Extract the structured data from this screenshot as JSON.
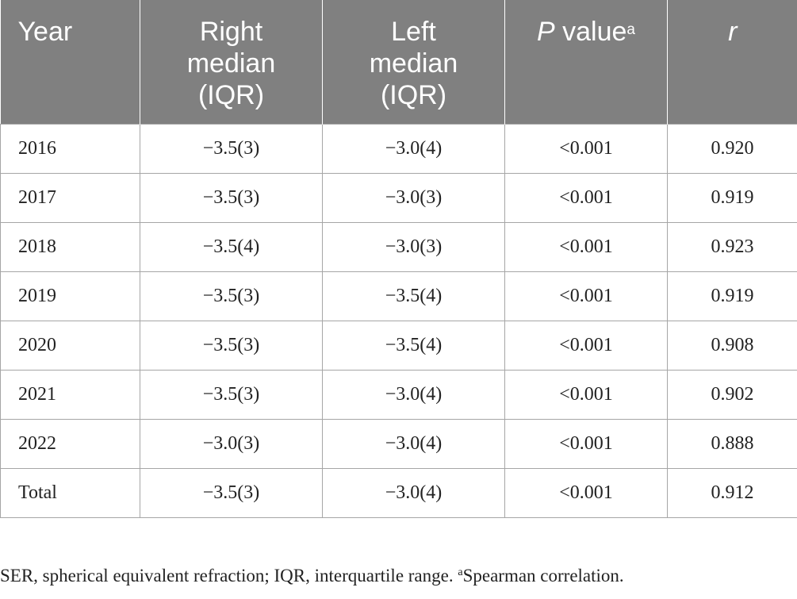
{
  "table": {
    "headers": {
      "year": "Year",
      "right_line1": "Right",
      "right_line2": "median",
      "right_line3": "(IQR)",
      "left_line1": "Left",
      "left_line2": "median",
      "left_line3": "(IQR)",
      "p_italic": "P",
      "p_rest": " value",
      "p_sup": "a",
      "r": "r"
    },
    "rows": [
      {
        "year": "2016",
        "right": "−3.5(3)",
        "left": "−3.0(4)",
        "p": "<0.001",
        "r": "0.920"
      },
      {
        "year": "2017",
        "right": "−3.5(3)",
        "left": "−3.0(3)",
        "p": "<0.001",
        "r": "0.919"
      },
      {
        "year": "2018",
        "right": "−3.5(4)",
        "left": "−3.0(3)",
        "p": "<0.001",
        "r": "0.923"
      },
      {
        "year": "2019",
        "right": "−3.5(3)",
        "left": "−3.5(4)",
        "p": "<0.001",
        "r": "0.919"
      },
      {
        "year": "2020",
        "right": "−3.5(3)",
        "left": "−3.5(4)",
        "p": "<0.001",
        "r": "0.908"
      },
      {
        "year": "2021",
        "right": "−3.5(3)",
        "left": "−3.0(4)",
        "p": "<0.001",
        "r": "0.902"
      },
      {
        "year": "2022",
        "right": "−3.0(3)",
        "left": "−3.0(4)",
        "p": "<0.001",
        "r": "0.888"
      },
      {
        "year": "Total",
        "right": "−3.5(3)",
        "left": "−3.0(4)",
        "p": "<0.001",
        "r": "0.912"
      }
    ]
  },
  "footnote": {
    "main": "SER, spherical equivalent refraction; IQR, interquartile range. ",
    "sup": "a",
    "tail": "Spearman correlation."
  },
  "colors": {
    "header_bg": "#808080",
    "header_text": "#ffffff",
    "grid": "#a6a6a6",
    "body_text": "#222222"
  }
}
